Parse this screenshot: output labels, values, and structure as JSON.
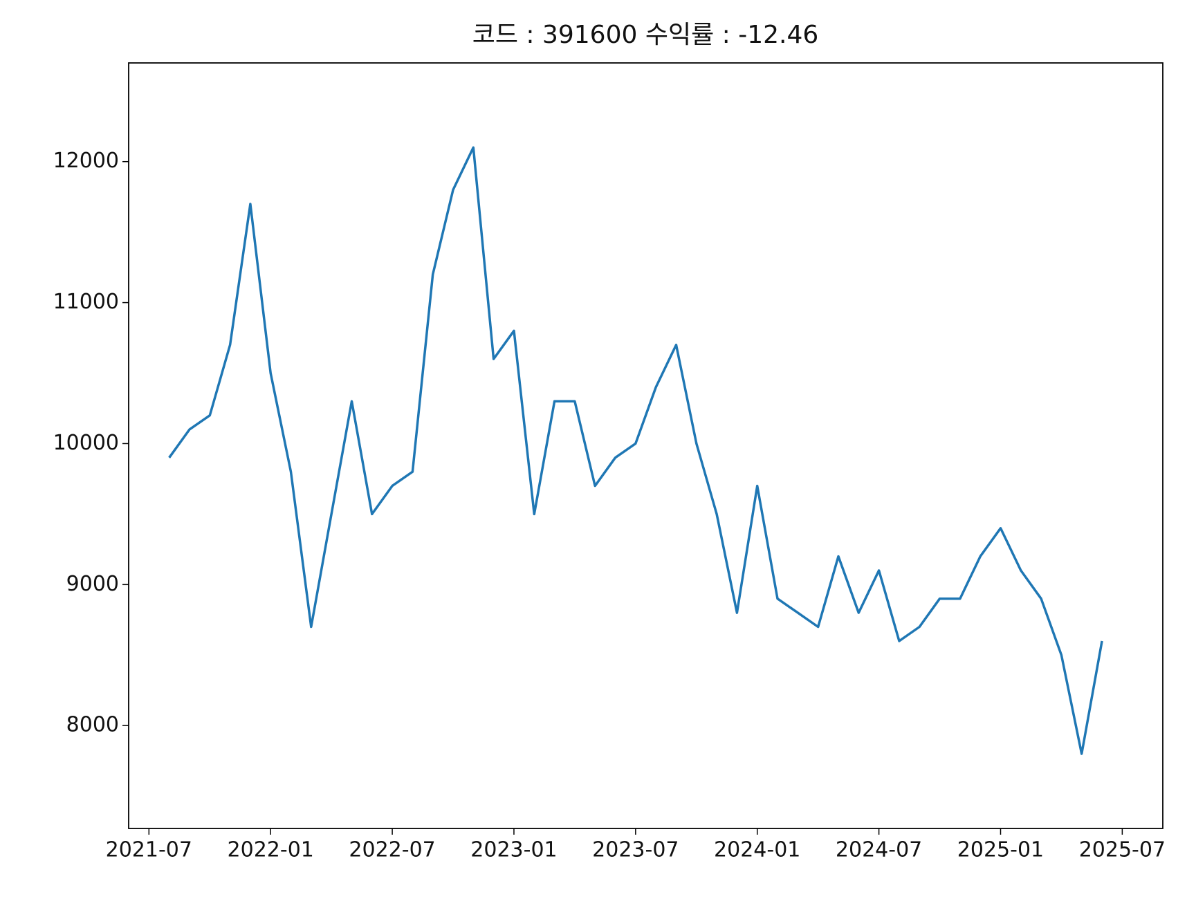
{
  "chart_data": {
    "type": "line",
    "title": "코드 : 391600 수익률 : -12.46",
    "x": [
      "2021-08",
      "2021-09",
      "2021-10",
      "2021-11",
      "2021-12",
      "2022-01",
      "2022-02",
      "2022-03",
      "2022-04",
      "2022-05",
      "2022-06",
      "2022-07",
      "2022-08",
      "2022-09",
      "2022-10",
      "2022-11",
      "2022-12",
      "2023-01",
      "2023-02",
      "2023-03",
      "2023-04",
      "2023-05",
      "2023-06",
      "2023-07",
      "2023-08",
      "2023-09",
      "2023-10",
      "2023-11",
      "2023-12",
      "2024-01",
      "2024-02",
      "2024-03",
      "2024-04",
      "2024-05",
      "2024-06",
      "2024-07",
      "2024-08",
      "2024-09",
      "2024-10",
      "2024-11",
      "2024-12",
      "2025-01",
      "2025-02",
      "2025-03",
      "2025-04",
      "2025-05",
      "2025-06"
    ],
    "series": [
      {
        "color": "#1f77b4",
        "values": [
          9900,
          10100,
          10200,
          10700,
          11700,
          10500,
          9800,
          8700,
          9500,
          10300,
          9500,
          9700,
          9800,
          11200,
          11800,
          12100,
          10600,
          10800,
          9500,
          10300,
          10300,
          9700,
          9900,
          10000,
          10400,
          10700,
          10000,
          9500,
          8800,
          9700,
          8900,
          8800,
          8700,
          9200,
          8800,
          9100,
          8600,
          8700,
          8900,
          8900,
          9200,
          9400,
          9100,
          8900,
          8500,
          7800,
          8600
        ]
      }
    ],
    "xlim": [
      "2021-06",
      "2025-09"
    ],
    "xticks": [
      "2021-07",
      "2022-01",
      "2022-07",
      "2023-01",
      "2023-07",
      "2024-01",
      "2024-07",
      "2025-01",
      "2025-07"
    ],
    "ylim": [
      7270,
      12700
    ],
    "yticks": [
      8000,
      9000,
      10000,
      11000,
      12000
    ]
  }
}
